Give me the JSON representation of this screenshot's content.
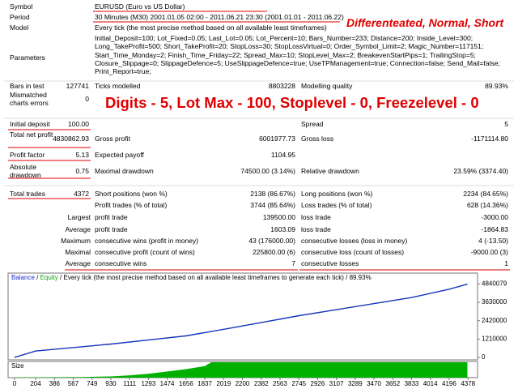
{
  "report": {
    "symbol": {
      "label": "Symbol",
      "value": "EURUSD (Euro vs US Dollar)"
    },
    "period": {
      "label": "Period",
      "value": "30 Minutes (M30) 2001.01.05 02:00 - 2011.06.21 23:30 (2001.01.01 - 2011.06.22)"
    },
    "model": {
      "label": "Model",
      "value": "Every tick (the most precise method based on all available least timeframes)"
    },
    "parameters": {
      "label": "Parameters",
      "lines": [
        "Initial_Deposit=100; Lot_Fixed=0.05; Last_Lot=0.05; Lot_Percent=10; Bars_Number=233; Distance=200; Inside_Level=300;",
        "Long_TakeProfit=500; Short_TakeProfit=20; StopLoss=30; StopLossVirtual=0; Order_Symbol_Limit=2; Magic_Number=117151;",
        "Start_Time_Monday=2; Finish_Time_Friday=22; Spread_Max=10; StopLevel_Max=2; BreakevenStartPips=1; TrailingStop=5;",
        "Closure_Slippage=0; SlippageDefence=5; UseSlippageDefence=true; UseTPManagement=true; Connection=false; Send_Mail=false;",
        "Print_Report=true;"
      ]
    },
    "rows": [
      [
        {
          "label": "Bars in test",
          "value": "127741"
        },
        {
          "label": "Ticks modelled",
          "value": "8803228"
        },
        {
          "label": "Modelling quality",
          "value": "89.93%"
        }
      ],
      [
        {
          "label": "Mismatched charts errors",
          "value": "0"
        }
      ],
      [
        {
          "label": "Initial deposit",
          "value": "100.00"
        },
        null,
        {
          "label": "Spread",
          "value": "5"
        }
      ],
      [
        {
          "label": "Total net profit",
          "value": "4830862.93"
        },
        {
          "label": "Gross profit",
          "value": "6001977.73"
        },
        {
          "label": "Gross loss",
          "value": "-1171114.80"
        }
      ],
      [
        {
          "label": "Profit factor",
          "value": "5.13"
        },
        {
          "label": "Expected payoff",
          "value": "1104.95"
        }
      ],
      [
        {
          "label": "Absolute drawdown",
          "value": "0.75"
        },
        {
          "label": "Maximal drawdown",
          "value": "74500.00 (3.14%)"
        },
        {
          "label": "Relative drawdown",
          "value": "23.59% (3374.40)"
        }
      ],
      [
        {
          "label": "Total trades",
          "value": "4372"
        },
        {
          "label": "Short positions (won %)",
          "value": "2138 (86.67%)"
        },
        {
          "label": "Long positions (won %)",
          "value": "2234 (84.65%)"
        }
      ],
      [
        null,
        {
          "label": "Profit trades (% of total)",
          "value": "3744 (85.64%)"
        },
        {
          "label": "Loss trades (% of total)",
          "value": "628 (14.36%)"
        }
      ],
      [
        {
          "label": "Largest"
        },
        {
          "label": "profit trade",
          "value": "139500.00"
        },
        {
          "label": "loss trade",
          "value": "-3000.00"
        }
      ],
      [
        {
          "label": "Average"
        },
        {
          "label": "profit trade",
          "value": "1603.09"
        },
        {
          "label": "loss trade",
          "value": "-1864.83"
        }
      ],
      [
        {
          "label": "Maximum"
        },
        {
          "label": "consecutive wins (profit in money)",
          "value": "43 (176000.00)"
        },
        {
          "label": "consecutive losses (loss in money)",
          "value": "4 (-13.50)"
        }
      ],
      [
        {
          "label": "Maximal"
        },
        {
          "label": "consecutive profit (count of wins)",
          "value": "225800.00 (6)"
        },
        {
          "label": "consecutive loss (count of losses)",
          "value": "-9000.00 (3)"
        }
      ],
      [
        {
          "label": "Average"
        },
        {
          "label": "consecutive wins",
          "value": "7"
        },
        {
          "label": "consecutive losses",
          "value": "1"
        }
      ]
    ]
  },
  "annotations": [
    "Differenteated, Normal, Short",
    "Digits - 5, Lot Max - 100, Stoplevel - 0, Freezelevel - 0"
  ],
  "chart_data": [
    {
      "type": "line",
      "title": "Every tick (the most precise method based on all available least timeframes to generate each tick)",
      "quality": "89.93%",
      "series": [
        {
          "name": "Balance",
          "color": "#1c2fd0",
          "x": [
            0,
            204,
            567,
            930,
            1293,
            1656,
            2019,
            2382,
            2745,
            3107,
            3470,
            3833,
            4196,
            4372
          ],
          "values": [
            100,
            420000,
            650000,
            880000,
            1150000,
            1420000,
            1850000,
            2300000,
            2750000,
            3150000,
            3550000,
            3950000,
            4500000,
            4830963
          ]
        },
        {
          "name": "Equity",
          "color": "#12a012",
          "x": [
            0,
            204,
            567,
            930,
            1293,
            1656,
            2019,
            2382,
            2745,
            3107,
            3470,
            3833,
            4196,
            4372
          ],
          "values": [
            100,
            420000,
            650000,
            880000,
            1150000,
            1420000,
            1850000,
            2300000,
            2750000,
            3150000,
            3550000,
            3950000,
            4500000,
            4830963
          ]
        }
      ],
      "xlim": [
        -62,
        4470
      ],
      "ylim": [
        0,
        5400000
      ],
      "yticks": [
        0,
        1210000,
        2420000,
        3630000,
        4840079
      ]
    },
    {
      "type": "area",
      "title": "Size",
      "color": "#00b000",
      "x": [
        0,
        640,
        930,
        1111,
        1293,
        1474,
        1656,
        1837,
        1900,
        4372
      ],
      "values": [
        2,
        4,
        8,
        15,
        25,
        40,
        55,
        75,
        100,
        100
      ],
      "xlim": [
        -62,
        4470
      ],
      "ylim": [
        0,
        100
      ],
      "xticks": [
        0,
        204,
        386,
        567,
        749,
        930,
        1111,
        1293,
        1474,
        1656,
        1837,
        2019,
        2200,
        2382,
        2563,
        2745,
        2926,
        3107,
        3289,
        3470,
        3652,
        3833,
        4014,
        4196,
        4378
      ]
    }
  ]
}
